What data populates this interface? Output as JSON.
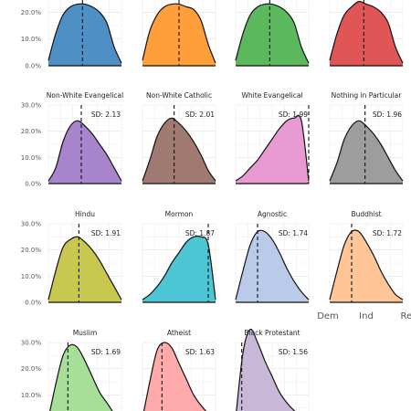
{
  "chart_data": {
    "type": "area",
    "y_ticks": [
      "0.0%",
      "10.0%",
      "20.0%",
      "30.0%"
    ],
    "ylim": [
      0,
      0.3
    ],
    "x_ticks": [
      "Dem",
      "Ind",
      "Rep"
    ],
    "grid": true,
    "colors": [
      "#4e90c5",
      "#ff9f3c",
      "#5cb85c",
      "#e05555",
      "#a884cc",
      "#a07a70",
      "#e89ad2",
      "#9d9d9d",
      "#c8c850",
      "#4cc6d4",
      "#b9cbe9",
      "#ffc596",
      "#a8df98",
      "#ffabab",
      "#c9b7d8"
    ],
    "panels": [
      {
        "title": "",
        "sd": "",
        "mean": 3.8,
        "shape": [
          0.02,
          0.12,
          0.19,
          0.22,
          0.23,
          0.23,
          0.22,
          0.2,
          0.16,
          0.07,
          0.01
        ]
      },
      {
        "title": "",
        "sd": "",
        "mean": 4.0,
        "shape": [
          0.02,
          0.13,
          0.19,
          0.22,
          0.23,
          0.23,
          0.22,
          0.21,
          0.17,
          0.08,
          0.01
        ]
      },
      {
        "title": "",
        "sd": "",
        "mean": 3.8,
        "shape": [
          0.02,
          0.12,
          0.19,
          0.22,
          0.23,
          0.23,
          0.22,
          0.2,
          0.16,
          0.07,
          0.01
        ]
      },
      {
        "title": "",
        "sd": "",
        "mean": 3.8,
        "shape": [
          0.02,
          0.12,
          0.19,
          0.22,
          0.24,
          0.23,
          0.22,
          0.2,
          0.16,
          0.07,
          0.01
        ]
      },
      {
        "title": "Non-White Evangelical",
        "sd": "SD: 2.13",
        "mean": 3.7,
        "shape": [
          0.01,
          0.06,
          0.16,
          0.22,
          0.24,
          0.22,
          0.19,
          0.15,
          0.11,
          0.06,
          0.01
        ]
      },
      {
        "title": "Non-White Catholic",
        "sd": "SD: 2.01",
        "mean": 3.6,
        "shape": [
          0.01,
          0.09,
          0.18,
          0.23,
          0.25,
          0.23,
          0.2,
          0.16,
          0.11,
          0.05,
          0.01
        ]
      },
      {
        "title": "White Evangelical",
        "sd": "SD: 1.99",
        "mean": 7.0,
        "shape": [
          0.01,
          0.03,
          0.06,
          0.09,
          0.13,
          0.17,
          0.21,
          0.24,
          0.25,
          0.24,
          0.01
        ]
      },
      {
        "title": "Nothing in Particular",
        "sd": "SD: 1.96",
        "mean": 3.9,
        "shape": [
          0.01,
          0.08,
          0.17,
          0.22,
          0.24,
          0.22,
          0.19,
          0.15,
          0.1,
          0.05,
          0.01
        ]
      },
      {
        "title": "Hindu",
        "sd": "SD: 1.91",
        "mean": 3.5,
        "shape": [
          0.01,
          0.12,
          0.21,
          0.24,
          0.25,
          0.23,
          0.2,
          0.16,
          0.11,
          0.06,
          0.01
        ]
      },
      {
        "title": "Mormon",
        "sd": "SD: 1.87",
        "mean": 6.4,
        "shape": [
          0.01,
          0.03,
          0.06,
          0.1,
          0.15,
          0.19,
          0.23,
          0.25,
          0.25,
          0.22,
          0.01
        ]
      },
      {
        "title": "Agnostic",
        "sd": "SD: 1.74",
        "mean": 2.8,
        "shape": [
          0.01,
          0.12,
          0.22,
          0.27,
          0.27,
          0.24,
          0.19,
          0.13,
          0.08,
          0.04,
          0.01
        ]
      },
      {
        "title": "Buddhist",
        "sd": "SD: 1.72",
        "mean": 2.8,
        "shape": [
          0.01,
          0.12,
          0.22,
          0.27,
          0.27,
          0.23,
          0.18,
          0.12,
          0.07,
          0.03,
          0.01
        ]
      },
      {
        "title": "Muslim",
        "sd": "SD: 1.69",
        "mean": 2.6,
        "shape": [
          0.01,
          0.14,
          0.25,
          0.29,
          0.28,
          0.23,
          0.17,
          0.11,
          0.07,
          0.03,
          0.01
        ]
      },
      {
        "title": "Atheist",
        "sd": "SD: 1.63",
        "mean": 2.6,
        "shape": [
          0.01,
          0.15,
          0.27,
          0.3,
          0.28,
          0.22,
          0.16,
          0.1,
          0.06,
          0.03,
          0.01
        ]
      },
      {
        "title": "Black Protestant",
        "sd": "SD: 1.56",
        "mean": 1.5,
        "shape": [
          0.01,
          0.26,
          0.35,
          0.3,
          0.23,
          0.17,
          0.11,
          0.07,
          0.04,
          0.02,
          0.01
        ]
      }
    ]
  }
}
